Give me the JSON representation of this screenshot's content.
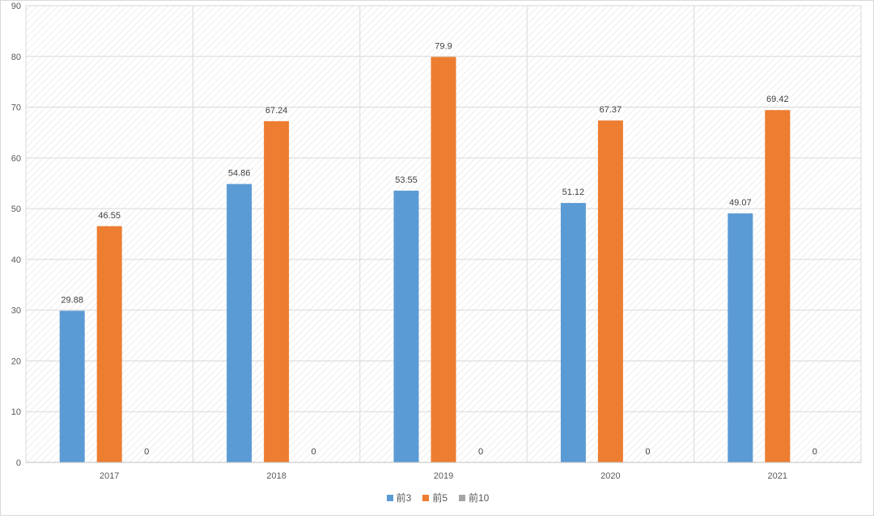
{
  "chart_data": {
    "type": "bar",
    "categories": [
      "2017",
      "2018",
      "2019",
      "2020",
      "2021"
    ],
    "series": [
      {
        "name": "前3",
        "values": [
          29.88,
          54.86,
          53.55,
          51.12,
          49.07
        ],
        "color": "#5b9bd5"
      },
      {
        "name": "前5",
        "values": [
          46.55,
          67.24,
          79.9,
          67.37,
          69.42
        ],
        "color": "#ed7d31"
      },
      {
        "name": "前10",
        "values": [
          0,
          0,
          0,
          0,
          0
        ],
        "color": "#a5a5a5"
      }
    ],
    "ylim": [
      0,
      90
    ],
    "yticks": [
      "0",
      "10",
      "20",
      "30",
      "40",
      "50",
      "60",
      "70",
      "80",
      "90"
    ],
    "grid": true,
    "legend_position": "bottom",
    "data_labels": true,
    "plot_background": "diagonal-hatch"
  }
}
